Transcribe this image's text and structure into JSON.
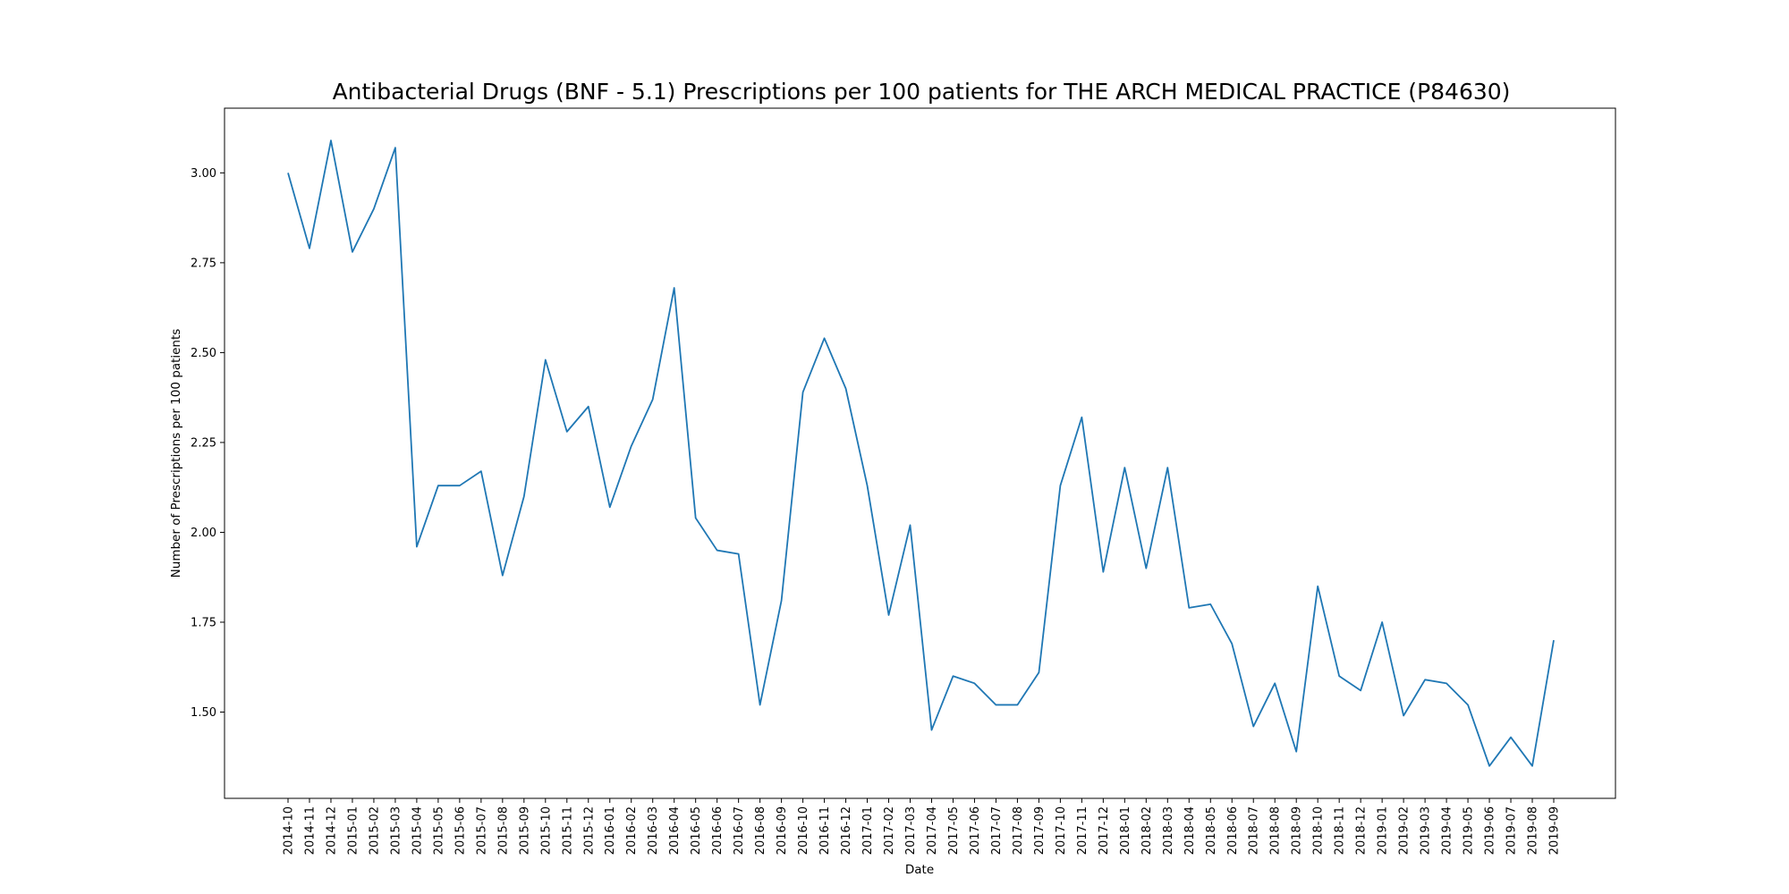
{
  "chart_data": {
    "type": "line",
    "title": "Antibacterial Drugs (BNF - 5.1) Prescriptions per 100 patients for THE ARCH MEDICAL PRACTICE (P84630)",
    "xlabel": "Date",
    "ylabel": "Number of Prescriptions per 100 patients",
    "x": [
      "2014-10",
      "2014-11",
      "2014-12",
      "2015-01",
      "2015-02",
      "2015-03",
      "2015-04",
      "2015-05",
      "2015-06",
      "2015-07",
      "2015-08",
      "2015-09",
      "2015-10",
      "2015-11",
      "2015-12",
      "2016-01",
      "2016-02",
      "2016-03",
      "2016-04",
      "2016-05",
      "2016-06",
      "2016-07",
      "2016-08",
      "2016-09",
      "2016-10",
      "2016-11",
      "2016-12",
      "2017-01",
      "2017-02",
      "2017-03",
      "2017-04",
      "2017-05",
      "2017-06",
      "2017-07",
      "2017-08",
      "2017-09",
      "2017-10",
      "2017-11",
      "2017-12",
      "2018-01",
      "2018-02",
      "2018-03",
      "2018-04",
      "2018-05",
      "2018-06",
      "2018-07",
      "2018-08",
      "2018-09",
      "2018-10",
      "2018-11",
      "2018-12",
      "2019-01",
      "2019-02",
      "2019-03",
      "2019-04",
      "2019-05",
      "2019-06",
      "2019-07",
      "2019-08",
      "2019-09"
    ],
    "series": [
      {
        "values": [
          3.0,
          2.79,
          3.09,
          2.78,
          2.9,
          3.07,
          1.96,
          2.13,
          2.13,
          2.17,
          1.88,
          2.1,
          2.48,
          2.28,
          2.35,
          2.07,
          2.24,
          2.37,
          2.68,
          2.04,
          1.95,
          1.94,
          1.52,
          1.81,
          2.39,
          2.54,
          2.4,
          2.13,
          1.77,
          2.02,
          1.45,
          1.6,
          1.58,
          1.52,
          1.52,
          1.61,
          2.13,
          2.32,
          1.89,
          2.18,
          1.9,
          2.18,
          1.79,
          1.8,
          1.69,
          1.46,
          1.58,
          1.39,
          1.85,
          1.6,
          1.56,
          1.75,
          1.49,
          1.59,
          1.58,
          1.52,
          1.35,
          1.43,
          1.35,
          1.7
        ],
        "color": "#1f77b4"
      }
    ],
    "ylim": [
      1.26,
      3.18
    ],
    "yticks": [
      "1.50",
      "1.75",
      "2.00",
      "2.25",
      "2.50",
      "2.75",
      "3.00"
    ],
    "grid": false,
    "legend": "none"
  }
}
